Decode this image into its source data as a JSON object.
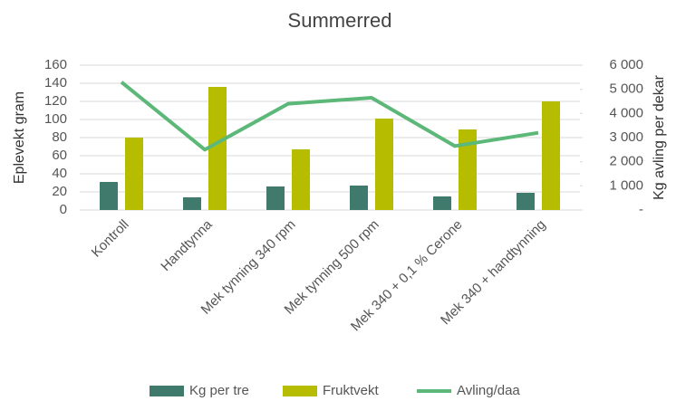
{
  "chart_data": {
    "type": "bar",
    "title": "Summerred",
    "categories": [
      "Kontroll",
      "Handtynna",
      "Mek tynning 340 rpm",
      "Mek tynning 500 rpm",
      "Mek 340 + 0,1 % Cerone",
      "Mek 340 + handtynning"
    ],
    "series": [
      {
        "name": "Kg per tre",
        "type": "bar",
        "color": "#3f7a6c",
        "values": [
          31,
          14,
          26,
          27,
          15,
          19
        ]
      },
      {
        "name": "Fruktvekt",
        "type": "bar",
        "color": "#b6bd00",
        "values": [
          80,
          136,
          67,
          101,
          89,
          120
        ]
      },
      {
        "name": "Avling/daa",
        "type": "line",
        "axis": "y2",
        "color": "#5cb878",
        "values": [
          5300,
          2500,
          4400,
          4650,
          2650,
          3200
        ]
      }
    ],
    "y_label": "Eplevekt gram",
    "y2_label": "Kg avling per dekar",
    "ylim": [
      0,
      160
    ],
    "yticks": [
      0,
      20,
      40,
      60,
      80,
      100,
      120,
      140,
      160
    ],
    "y2lim": [
      0,
      6000
    ],
    "y2ticks": [
      {
        "value": 0,
        "label": "-"
      },
      {
        "value": 1000,
        "label": "1 000"
      },
      {
        "value": 2000,
        "label": "2 000"
      },
      {
        "value": 3000,
        "label": "3 000"
      },
      {
        "value": 4000,
        "label": "4 000"
      },
      {
        "value": 5000,
        "label": "5 000"
      },
      {
        "value": 6000,
        "label": "6 000"
      }
    ],
    "grid": true,
    "legend": "bottom"
  }
}
